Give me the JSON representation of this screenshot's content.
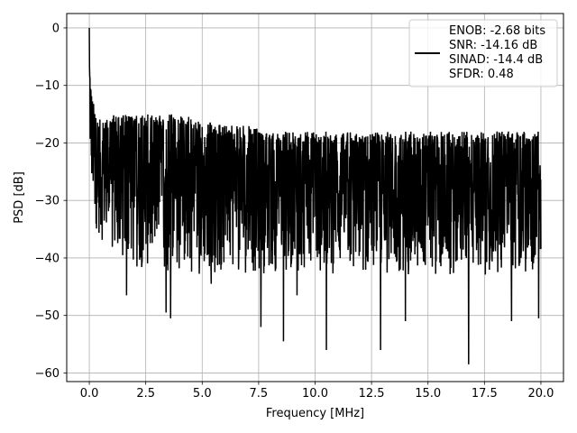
{
  "chart_data": {
    "type": "line",
    "title": "",
    "xlabel": "Frequency [MHz]",
    "ylabel": "PSD [dB]",
    "xlim": [
      -1.0,
      21.0
    ],
    "ylim": [
      -61.5,
      2.5
    ],
    "xticks": [
      0.0,
      2.5,
      5.0,
      7.5,
      10.0,
      12.5,
      15.0,
      17.5,
      20.0
    ],
    "xtick_labels": [
      "0.0",
      "2.5",
      "5.0",
      "7.5",
      "10.0",
      "12.5",
      "15.0",
      "17.5",
      "20.0"
    ],
    "yticks": [
      0,
      -10,
      -20,
      -30,
      -40,
      -50,
      -60
    ],
    "ytick_labels": [
      "0",
      "−10",
      "−20",
      "−30",
      "−40",
      "−50",
      "−60"
    ],
    "grid": true,
    "legend_position": "top-right",
    "line_color": "#000000",
    "series": [
      {
        "name": "ENOB: -2.68 bits\nSNR: -14.16 dB\nSINAD: -14.4 dB\nSFDR: 0.48",
        "color": "#000000",
        "envelope_x": [
          0,
          0.05,
          0.1,
          0.15,
          0.2,
          0.3,
          0.5,
          0.7,
          1.0,
          1.5,
          2.0,
          2.5,
          3.0,
          4.0,
          5.0,
          6.0,
          7.0,
          8.0,
          9.0,
          10.0,
          11.0,
          12.0,
          13.0,
          14.0,
          15.0,
          16.0,
          17.0,
          18.0,
          19.0,
          20.0
        ],
        "envelope_top": [
          0,
          -6,
          -10,
          -12,
          -13,
          -15,
          -16,
          -16,
          -15,
          -15,
          -15,
          -15,
          -15,
          -15,
          -16,
          -17,
          -17,
          -18,
          -18,
          -18,
          -18,
          -18,
          -18,
          -18,
          -18,
          -18,
          -18,
          -18,
          -18,
          -18
        ],
        "envelope_bottom": [
          -20,
          -25,
          -28,
          -30,
          -32,
          -35,
          -37,
          -38,
          -40,
          -42,
          -42,
          -42,
          -43,
          -43,
          -43,
          -43,
          -43,
          -43,
          -43,
          -43,
          -43,
          -43,
          -43,
          -43,
          -43,
          -43,
          -43,
          -43,
          -43,
          -43
        ],
        "dips": [
          {
            "x": 1.65,
            "y": -46.5
          },
          {
            "x": 3.4,
            "y": -49.5
          },
          {
            "x": 3.6,
            "y": -50.5
          },
          {
            "x": 5.4,
            "y": -44.5
          },
          {
            "x": 7.6,
            "y": -52
          },
          {
            "x": 8.6,
            "y": -54.5
          },
          {
            "x": 9.2,
            "y": -46.5
          },
          {
            "x": 10.5,
            "y": -56
          },
          {
            "x": 12.9,
            "y": -56
          },
          {
            "x": 14.0,
            "y": -51
          },
          {
            "x": 16.8,
            "y": -58.5
          },
          {
            "x": 18.7,
            "y": -51
          },
          {
            "x": 19.9,
            "y": -50.5
          }
        ]
      }
    ]
  }
}
